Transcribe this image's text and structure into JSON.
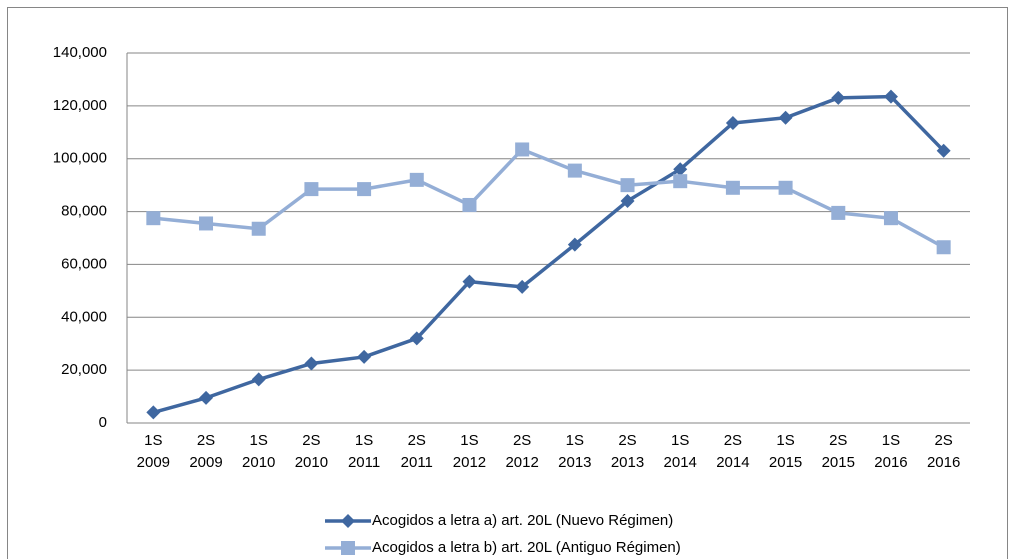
{
  "chart_data": {
    "type": "line",
    "categories": [
      "1S 2009",
      "2S 2009",
      "1S 2010",
      "2S 2010",
      "1S 2011",
      "2S 2011",
      "1S 2012",
      "2S 2012",
      "1S 2013",
      "2S 2013",
      "1S 2014",
      "2S 2014",
      "1S 2015",
      "2S 2015",
      "1S 2016",
      "2S 2016"
    ],
    "series": [
      {
        "name": "Acogidos a letra a) art. 20L (Nuevo Régimen)",
        "color": "#3f67a0",
        "marker": "diamond",
        "values": [
          4000,
          9500,
          16500,
          22500,
          25000,
          32000,
          53500,
          51500,
          67500,
          84000,
          96000,
          113500,
          115500,
          123000,
          123500,
          103000
        ]
      },
      {
        "name": "Acogidos a letra b) art. 20L (Antiguo Régimen)",
        "color": "#94aed6",
        "marker": "square",
        "values": [
          77500,
          75500,
          73500,
          88500,
          88500,
          92000,
          82500,
          103500,
          95500,
          90000,
          91500,
          89000,
          89000,
          79500,
          77500,
          66500
        ]
      }
    ],
    "ylim": [
      0,
      140000
    ],
    "yticks": [
      0,
      {
        "value": 20000,
        "label": "20,000"
      },
      {
        "value": 40000,
        "label": "40,000"
      },
      {
        "value": 60000,
        "label": "60,000"
      },
      {
        "value": 80000,
        "label": "80,000"
      },
      {
        "value": 100000,
        "label": "100,000"
      },
      {
        "value": 120000,
        "label": "120,000"
      },
      {
        "value": 140000,
        "label": "140,000"
      }
    ],
    "grid": true,
    "legend": "bottom"
  }
}
